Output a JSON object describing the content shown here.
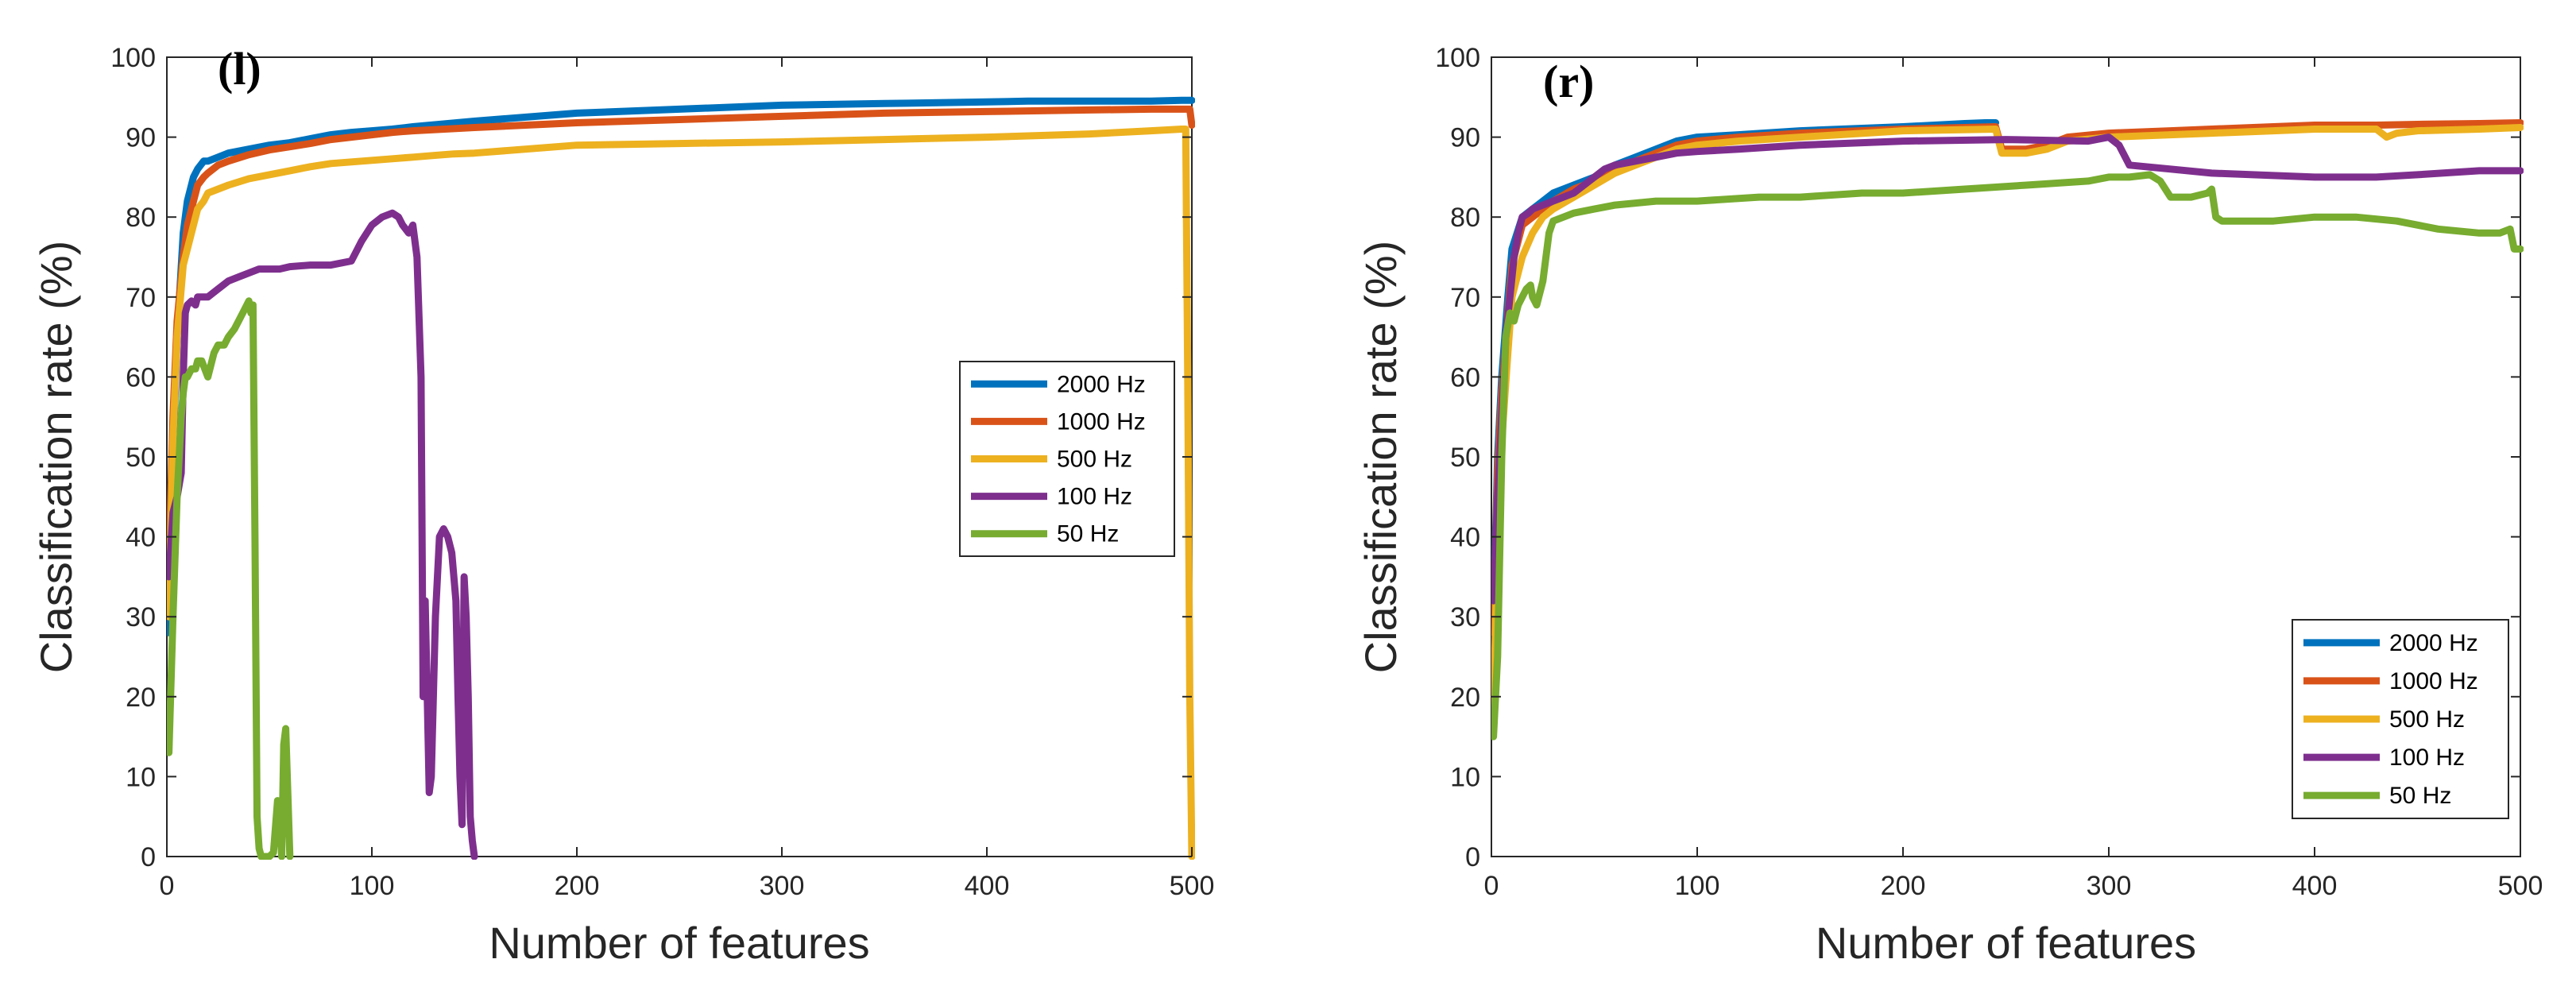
{
  "colors": {
    "2000 Hz": "#0072BD",
    "1000 Hz": "#D95319",
    "500 Hz": "#EDB120",
    "100 Hz": "#7E2F8E",
    "50 Hz": "#77AC30",
    "axis": "#262626",
    "background": "#ffffff"
  },
  "chart_data": [
    {
      "type": "line",
      "panel_label": "(l)",
      "xlabel": "Number of features",
      "ylabel": "Classification rate (%)",
      "xlim": [
        0,
        500
      ],
      "ylim": [
        0,
        100
      ],
      "xticks": [
        0,
        100,
        200,
        300,
        400,
        500
      ],
      "yticks": [
        0,
        10,
        20,
        30,
        40,
        50,
        60,
        70,
        80,
        90,
        100
      ],
      "legend_position": "right",
      "series": [
        {
          "name": "2000 Hz",
          "x": [
            1,
            3,
            5,
            8,
            10,
            13,
            15,
            18,
            20,
            25,
            30,
            40,
            50,
            60,
            70,
            80,
            90,
            100,
            110,
            120,
            150,
            200,
            250,
            300,
            350,
            400,
            420,
            450,
            480,
            495,
            498,
            499,
            500
          ],
          "y": [
            28,
            50,
            65,
            78,
            82,
            85,
            86,
            87,
            87,
            87.5,
            88,
            88.5,
            89,
            89.3,
            89.8,
            90.3,
            90.6,
            90.8,
            91,
            91.3,
            92,
            93,
            93.5,
            94,
            94.2,
            94.4,
            94.5,
            94.5,
            94.5,
            94.6,
            94.6,
            94.6,
            94.6
          ]
        },
        {
          "name": "1000 Hz",
          "x": [
            1,
            3,
            5,
            8,
            10,
            13,
            15,
            18,
            20,
            25,
            30,
            40,
            50,
            60,
            70,
            80,
            90,
            100,
            110,
            120,
            150,
            200,
            250,
            300,
            350,
            400,
            450,
            480,
            495,
            498,
            499,
            500
          ],
          "y": [
            36,
            55,
            67,
            75,
            79,
            82,
            84,
            85,
            85.5,
            86.5,
            87,
            87.8,
            88.4,
            88.8,
            89.2,
            89.7,
            90,
            90.3,
            90.6,
            90.8,
            91.2,
            91.8,
            92.2,
            92.6,
            93,
            93.2,
            93.4,
            93.5,
            93.5,
            93.5,
            93.5,
            91.5
          ]
        },
        {
          "name": "500 Hz",
          "x": [
            1,
            3,
            5,
            8,
            10,
            13,
            15,
            18,
            20,
            25,
            30,
            40,
            50,
            60,
            70,
            80,
            90,
            100,
            110,
            120,
            130,
            140,
            150,
            200,
            250,
            300,
            350,
            400,
            450,
            480,
            495,
            497,
            498,
            499,
            500
          ],
          "y": [
            30,
            52,
            65,
            74,
            76,
            79,
            81,
            82,
            83,
            83.5,
            84,
            84.8,
            85.3,
            85.8,
            86.3,
            86.7,
            86.9,
            87.1,
            87.3,
            87.5,
            87.7,
            87.9,
            88,
            89,
            89.2,
            89.4,
            89.7,
            90,
            90.4,
            90.8,
            91,
            91,
            60,
            20,
            0
          ]
        },
        {
          "name": "100 Hz",
          "x": [
            1,
            3,
            5,
            7,
            8,
            9,
            10,
            12,
            14,
            15,
            20,
            25,
            30,
            35,
            40,
            45,
            50,
            55,
            60,
            70,
            80,
            90,
            95,
            100,
            105,
            110,
            113,
            115,
            118,
            120,
            122,
            124,
            125,
            126,
            127,
            128,
            129,
            130,
            131,
            133,
            135,
            137,
            139,
            141,
            142,
            143,
            144,
            145,
            146,
            147,
            148,
            149,
            150
          ],
          "y": [
            35,
            43,
            45,
            48,
            60,
            68,
            69,
            69.5,
            69,
            70,
            70,
            71,
            72,
            72.5,
            73,
            73.5,
            73.5,
            73.5,
            73.8,
            74,
            74,
            74.5,
            77,
            79,
            80,
            80.5,
            80,
            79,
            78,
            79,
            75,
            60,
            20,
            32,
            20,
            8,
            10,
            20,
            30,
            40,
            41,
            40,
            38,
            32,
            20,
            10,
            4,
            35,
            30,
            20,
            5,
            2,
            0
          ]
        },
        {
          "name": "50 Hz",
          "x": [
            1,
            3,
            5,
            7,
            8,
            9,
            10,
            12,
            14,
            15,
            17,
            20,
            23,
            25,
            28,
            30,
            33,
            35,
            37,
            39,
            40,
            41,
            42,
            43,
            44,
            45,
            46,
            48,
            50,
            52,
            54,
            55,
            56,
            57,
            58,
            59,
            60
          ],
          "y": [
            13,
            30,
            45,
            55,
            58,
            60,
            60,
            61,
            61,
            62,
            62,
            60,
            63,
            64,
            64,
            65,
            66,
            67,
            68,
            69,
            69.5,
            68,
            69,
            40,
            5,
            1,
            0,
            0,
            0,
            0.5,
            7,
            5,
            0,
            14,
            16,
            8,
            0
          ]
        }
      ]
    },
    {
      "type": "line",
      "panel_label": "(r)",
      "xlabel": "Number of features",
      "ylabel": "Classification rate (%)",
      "xlim": [
        0,
        500
      ],
      "ylim": [
        0,
        100
      ],
      "xticks": [
        0,
        100,
        200,
        300,
        400,
        500
      ],
      "yticks": [
        0,
        10,
        20,
        30,
        40,
        50,
        60,
        70,
        80,
        90,
        100
      ],
      "legend_position": "bottom-right",
      "series": [
        {
          "name": "2000 Hz",
          "x": [
            1,
            3,
            5,
            8,
            10,
            15,
            20,
            25,
            30,
            40,
            50,
            60,
            70,
            80,
            90,
            100,
            120,
            150,
            200,
            230,
            240,
            245
          ],
          "y": [
            30,
            50,
            60,
            70,
            76,
            80,
            81,
            82,
            83,
            84,
            85,
            86.5,
            87.5,
            88.5,
            89.5,
            90,
            90.3,
            90.8,
            91.3,
            91.7,
            91.8,
            91.8
          ]
        },
        {
          "name": "1000 Hz",
          "x": [
            1,
            3,
            5,
            8,
            10,
            15,
            20,
            25,
            30,
            40,
            50,
            60,
            70,
            80,
            90,
            100,
            120,
            150,
            200,
            245,
            248,
            250,
            260,
            270,
            280,
            300,
            330,
            350,
            380,
            400,
            430,
            450,
            480,
            500
          ],
          "y": [
            28,
            48,
            58,
            68,
            74,
            79,
            80,
            81,
            82,
            83.5,
            84.5,
            86,
            87,
            88,
            89,
            89.5,
            90,
            90.5,
            91,
            91.3,
            88.5,
            88.5,
            88.5,
            89,
            90,
            90.5,
            90.8,
            91,
            91.3,
            91.5,
            91.5,
            91.6,
            91.7,
            91.8
          ]
        },
        {
          "name": "500 Hz",
          "x": [
            1,
            3,
            5,
            8,
            10,
            15,
            20,
            25,
            30,
            40,
            50,
            60,
            70,
            80,
            90,
            100,
            120,
            150,
            200,
            245,
            248,
            250,
            260,
            270,
            280,
            300,
            330,
            350,
            380,
            400,
            430,
            435,
            440,
            450,
            480,
            500
          ],
          "y": [
            18,
            40,
            52,
            63,
            70,
            75,
            78,
            80,
            81,
            82.5,
            84,
            85.5,
            86.5,
            87.5,
            88.5,
            89,
            89.5,
            90,
            90.8,
            91,
            88,
            88,
            88,
            88.5,
            89.5,
            90,
            90.3,
            90.5,
            90.8,
            91,
            91,
            90,
            90.5,
            90.8,
            91,
            91.2
          ]
        },
        {
          "name": "100 Hz",
          "x": [
            1,
            3,
            5,
            7,
            9,
            11,
            13,
            15,
            18,
            20,
            25,
            30,
            35,
            40,
            45,
            50,
            55,
            60,
            70,
            80,
            90,
            100,
            120,
            150,
            200,
            250,
            290,
            300,
            305,
            310,
            330,
            350,
            380,
            400,
            430,
            450,
            480,
            500
          ],
          "y": [
            32,
            45,
            55,
            65,
            70,
            75,
            78,
            80,
            80.5,
            81,
            81.5,
            82,
            82.5,
            83,
            84,
            85,
            86,
            86.5,
            87,
            87.5,
            88,
            88.2,
            88.5,
            89,
            89.5,
            89.7,
            89.5,
            90,
            89,
            86.5,
            86,
            85.5,
            85.2,
            85,
            85,
            85.3,
            85.8,
            85.8
          ]
        },
        {
          "name": "50 Hz",
          "x": [
            1,
            3,
            5,
            7,
            9,
            11,
            13,
            15,
            17,
            19,
            20,
            22,
            25,
            28,
            30,
            35,
            40,
            50,
            60,
            80,
            100,
            130,
            150,
            180,
            200,
            230,
            260,
            290,
            300,
            310,
            320,
            325,
            330,
            340,
            348,
            350,
            352,
            355,
            380,
            400,
            420,
            440,
            460,
            480,
            490,
            495,
            497,
            500
          ],
          "y": [
            15,
            25,
            50,
            65,
            68,
            67,
            69,
            70,
            71,
            71.5,
            70,
            69,
            72,
            78,
            79.5,
            80,
            80.5,
            81,
            81.5,
            82,
            82,
            82.5,
            82.5,
            83,
            83,
            83.5,
            84,
            84.5,
            85,
            85,
            85.3,
            84.5,
            82.5,
            82.5,
            83,
            83.5,
            80,
            79.5,
            79.5,
            80,
            80,
            79.5,
            78.5,
            78,
            78,
            78.5,
            76,
            76
          ]
        }
      ]
    }
  ]
}
